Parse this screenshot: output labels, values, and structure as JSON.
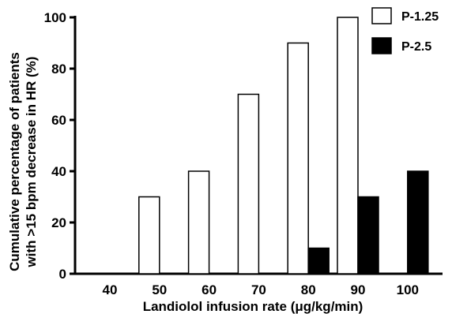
{
  "chart_data": {
    "type": "bar",
    "categories": [
      "40",
      "50",
      "60",
      "70",
      "80",
      "90",
      "100"
    ],
    "series": [
      {
        "name": "P-1.25",
        "color": "#ffffff",
        "values": [
          0,
          30,
          40,
          70,
          90,
          100,
          null
        ]
      },
      {
        "name": "P-2.5",
        "color": "#000000",
        "values": [
          0,
          0,
          0,
          0,
          10,
          30,
          40
        ]
      }
    ],
    "xlabel": "Landiolol infusion rate (μg/kg/min)",
    "ylabel_lines": [
      "Cumulative percentage of patients",
      "with >15 bpm decrease in HR (%)"
    ],
    "ylim": [
      0,
      100
    ],
    "yticks": [
      "0",
      "20",
      "40",
      "60",
      "80",
      "100"
    ],
    "legend_position": "top-right",
    "grid": false
  }
}
